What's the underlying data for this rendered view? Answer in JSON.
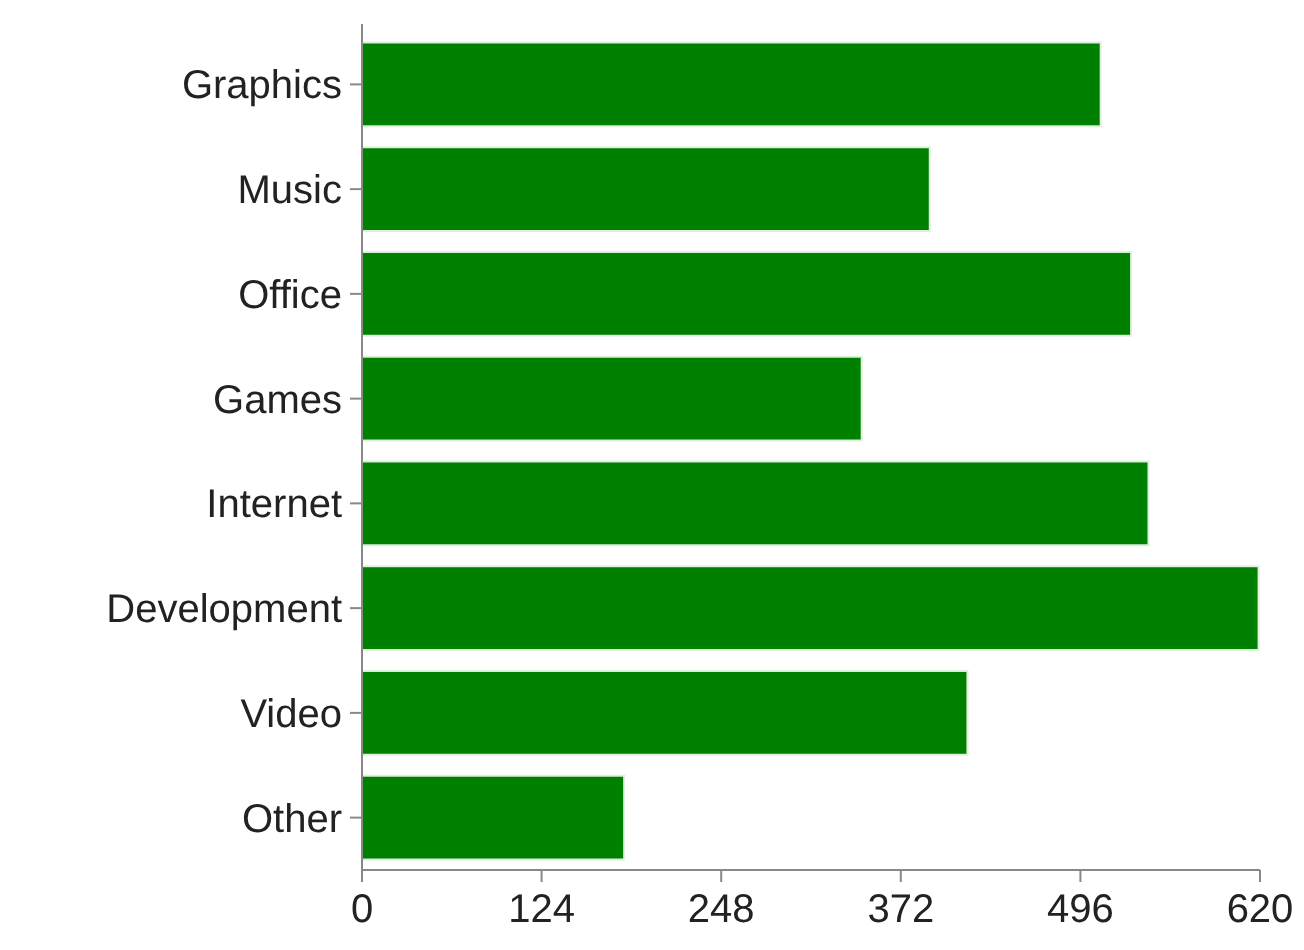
{
  "chart_data": {
    "type": "bar",
    "orientation": "horizontal",
    "categories": [
      "Graphics",
      "Music",
      "Office",
      "Games",
      "Internet",
      "Development",
      "Video",
      "Other"
    ],
    "values": [
      510,
      392,
      531,
      345,
      543,
      619,
      418,
      181
    ],
    "color": "#008000",
    "xlim": [
      0,
      620
    ],
    "xticks": [
      0,
      124,
      248,
      372,
      496,
      620
    ],
    "grid": false
  }
}
